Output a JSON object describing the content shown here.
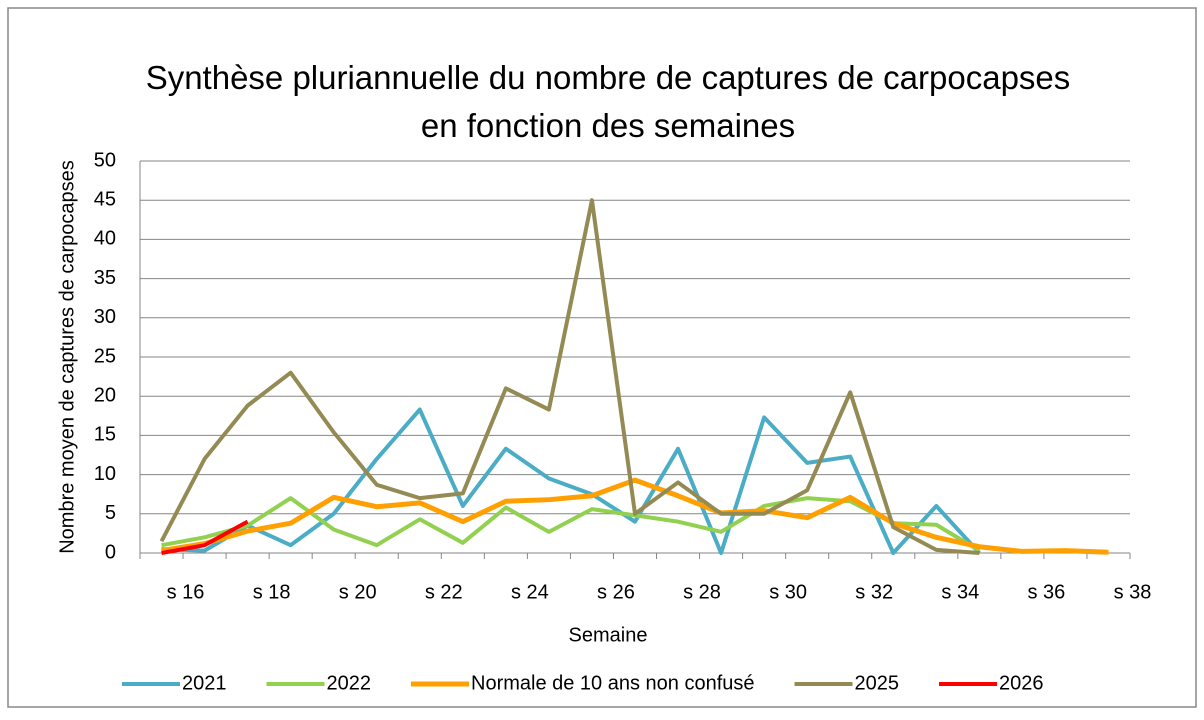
{
  "chart_data": {
    "type": "line",
    "title": "Synthèse pluriannuelle du nombre de captures de carpocapses en fonction des semaines",
    "x_label": "Semaine",
    "y_label": "Nombre moyen de captures de carpocapses",
    "categories": [
      "s 16",
      null,
      "s 18",
      null,
      "s 20",
      null,
      "s 22",
      null,
      "s 24",
      null,
      "s 26",
      null,
      "s 28",
      null,
      "s 30",
      null,
      "s 32",
      null,
      "s 34",
      null,
      "s 36",
      null,
      "s 38"
    ],
    "series": [
      {
        "name": "2021",
        "color": "#4bacc6",
        "values": [
          0.5,
          0.3,
          3.5,
          1,
          5,
          12,
          18.3,
          6,
          13.3,
          9.5,
          7.5,
          4,
          13.3,
          0,
          17.3,
          11.5,
          12.3,
          0,
          6,
          0,
          null,
          null,
          null
        ]
      },
      {
        "name": "2022",
        "color": "#92d050",
        "values": [
          1,
          2,
          3.5,
          7,
          3,
          1,
          4.3,
          1.3,
          5.8,
          2.7,
          5.6,
          4.8,
          4,
          2.7,
          6,
          7,
          6.6,
          3.8,
          3.6,
          0.3,
          null,
          null,
          null
        ]
      },
      {
        "name": "Normale de 10 ans non confusé",
        "color": "#ffa000",
        "width": 5,
        "values": [
          0.3,
          1.2,
          2.8,
          3.8,
          7.1,
          5.9,
          6.4,
          4,
          6.6,
          6.8,
          7.3,
          9.3,
          7.3,
          5.1,
          5.4,
          4.5,
          7.1,
          3.8,
          2,
          0.8,
          0.2,
          0.3,
          0.1
        ]
      },
      {
        "name": "2025",
        "color": "#948a54",
        "values": [
          1.5,
          12,
          18.8,
          23,
          15.4,
          8.7,
          7,
          7.6,
          21,
          18.3,
          45,
          5,
          9,
          5,
          5,
          8,
          20.5,
          3.3,
          0.4,
          0,
          null,
          null,
          null
        ]
      },
      {
        "name": "2026",
        "color": "#ff0000",
        "values": [
          0,
          1,
          4,
          null,
          null,
          null,
          null,
          null,
          null,
          null,
          null,
          null,
          null,
          null,
          null,
          null,
          null,
          null,
          null,
          null,
          null,
          null,
          null
        ]
      }
    ],
    "ylim": [
      0,
      50
    ],
    "yticks": [
      0,
      5,
      10,
      15,
      20,
      25,
      30,
      35,
      40,
      45,
      50
    ],
    "grid": true,
    "legend": "bottom"
  }
}
